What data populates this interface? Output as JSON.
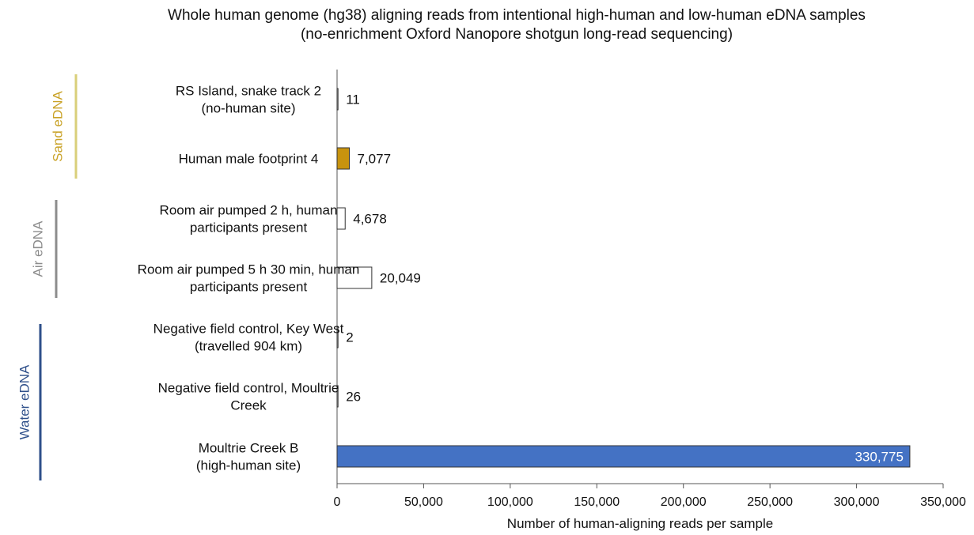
{
  "chart_data": {
    "type": "bar",
    "orientation": "horizontal",
    "title_lines": [
      "Whole human genome (hg38) aligning reads from intentional high-human and low-human eDNA samples",
      "(no-enrichment Oxford Nanopore shotgun long-read sequencing)"
    ],
    "xlabel": "Number of human-aligning reads per sample",
    "xlim": [
      0,
      350000
    ],
    "xticks": [
      0,
      50000,
      100000,
      150000,
      200000,
      250000,
      300000,
      350000
    ],
    "xtick_labels": [
      "0",
      "50,000",
      "100,000",
      "150,000",
      "200,000",
      "250,000",
      "300,000",
      "350,000"
    ],
    "grid": false,
    "bars": [
      {
        "label_lines": [
          "RS Island, snake track 2",
          "(no-human site)"
        ],
        "value": 11,
        "value_label": "11",
        "group": "Sand eDNA",
        "fill": "#ffffff",
        "label_inside": false
      },
      {
        "label_lines": [
          "Human male footprint 4"
        ],
        "value": 7077,
        "value_label": "7,077",
        "group": "Sand eDNA",
        "fill": "#c8930e",
        "label_inside": false
      },
      {
        "label_lines": [
          "Room air pumped 2 h, human",
          "participants present"
        ],
        "value": 4678,
        "value_label": "4,678",
        "group": "Air eDNA",
        "fill": "#ffffff",
        "label_inside": false
      },
      {
        "label_lines": [
          "Room air pumped 5 h 30 min, human",
          "participants present"
        ],
        "value": 20049,
        "value_label": "20,049",
        "group": "Air eDNA",
        "fill": "#ffffff",
        "label_inside": false
      },
      {
        "label_lines": [
          "Negative field control, Key West",
          "(travelled 904 km)"
        ],
        "value": 2,
        "value_label": "2",
        "group": "Water eDNA",
        "fill": "#ffffff",
        "label_inside": false
      },
      {
        "label_lines": [
          "Negative field control, Moultrie",
          "Creek"
        ],
        "value": 26,
        "value_label": "26",
        "group": "Water eDNA",
        "fill": "#ffffff",
        "label_inside": false
      },
      {
        "label_lines": [
          "Moultrie Creek B",
          "(high-human site)"
        ],
        "value": 330775,
        "value_label": "330,775",
        "group": "Water eDNA",
        "fill": "#4472c4",
        "label_inside": true
      }
    ],
    "groups": [
      {
        "name": "Sand eDNA",
        "color": "#d9cf7a",
        "text_color": "#c9a227"
      },
      {
        "name": "Air eDNA",
        "color": "#8c8c8c",
        "text_color": "#8c8c8c"
      },
      {
        "name": "Water eDNA",
        "color": "#2e4f8a",
        "text_color": "#2e4f8a"
      }
    ]
  }
}
